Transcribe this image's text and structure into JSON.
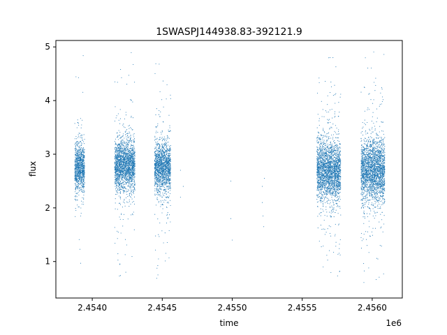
{
  "chart_data": {
    "type": "scatter",
    "title": "1SWASPJ144938.83-392121.9",
    "xlabel": "time",
    "ylabel": "flux",
    "x_offset_label": "1e6",
    "xlim": [
      2453740,
      2456215
    ],
    "ylim": [
      0.32,
      5.12
    ],
    "x_ticks": [
      2454000,
      2454500,
      2455000,
      2455500,
      2456000
    ],
    "x_tick_labels": [
      "2.4540",
      "2.4545",
      "2.4550",
      "2.4555",
      "2.4560"
    ],
    "y_ticks": [
      1,
      2,
      3,
      4,
      5
    ],
    "y_tick_labels": [
      "1",
      "2",
      "3",
      "4",
      "5"
    ],
    "grid": false,
    "legend": "none",
    "point_color": "#1f77b4",
    "clusters": [
      {
        "x_start": 2453875,
        "x_end": 2453945,
        "center": 2.75,
        "spread": 0.22,
        "min": 0.55,
        "max": 4.9
      },
      {
        "x_start": 2454160,
        "x_end": 2454305,
        "center": 2.8,
        "spread": 0.23,
        "min": 0.55,
        "max": 4.9
      },
      {
        "x_start": 2454445,
        "x_end": 2454560,
        "center": 2.75,
        "spread": 0.22,
        "min": 0.62,
        "max": 4.95
      },
      {
        "x_start": 2455605,
        "x_end": 2455775,
        "center": 2.7,
        "spread": 0.28,
        "min": 0.55,
        "max": 4.8
      },
      {
        "x_start": 2455920,
        "x_end": 2456090,
        "center": 2.7,
        "spread": 0.28,
        "min": 0.55,
        "max": 4.95
      }
    ],
    "sparse_points": [
      {
        "x": 2454630,
        "y": 2.7
      },
      {
        "x": 2454630,
        "y": 2.2
      },
      {
        "x": 2454650,
        "y": 2.4
      },
      {
        "x": 2454990,
        "y": 2.5
      },
      {
        "x": 2454990,
        "y": 1.8
      },
      {
        "x": 2455000,
        "y": 1.4
      },
      {
        "x": 2455215,
        "y": 2.4
      },
      {
        "x": 2455215,
        "y": 2.1
      },
      {
        "x": 2455220,
        "y": 1.85
      },
      {
        "x": 2455225,
        "y": 1.65
      },
      {
        "x": 2455230,
        "y": 2.55
      }
    ]
  }
}
